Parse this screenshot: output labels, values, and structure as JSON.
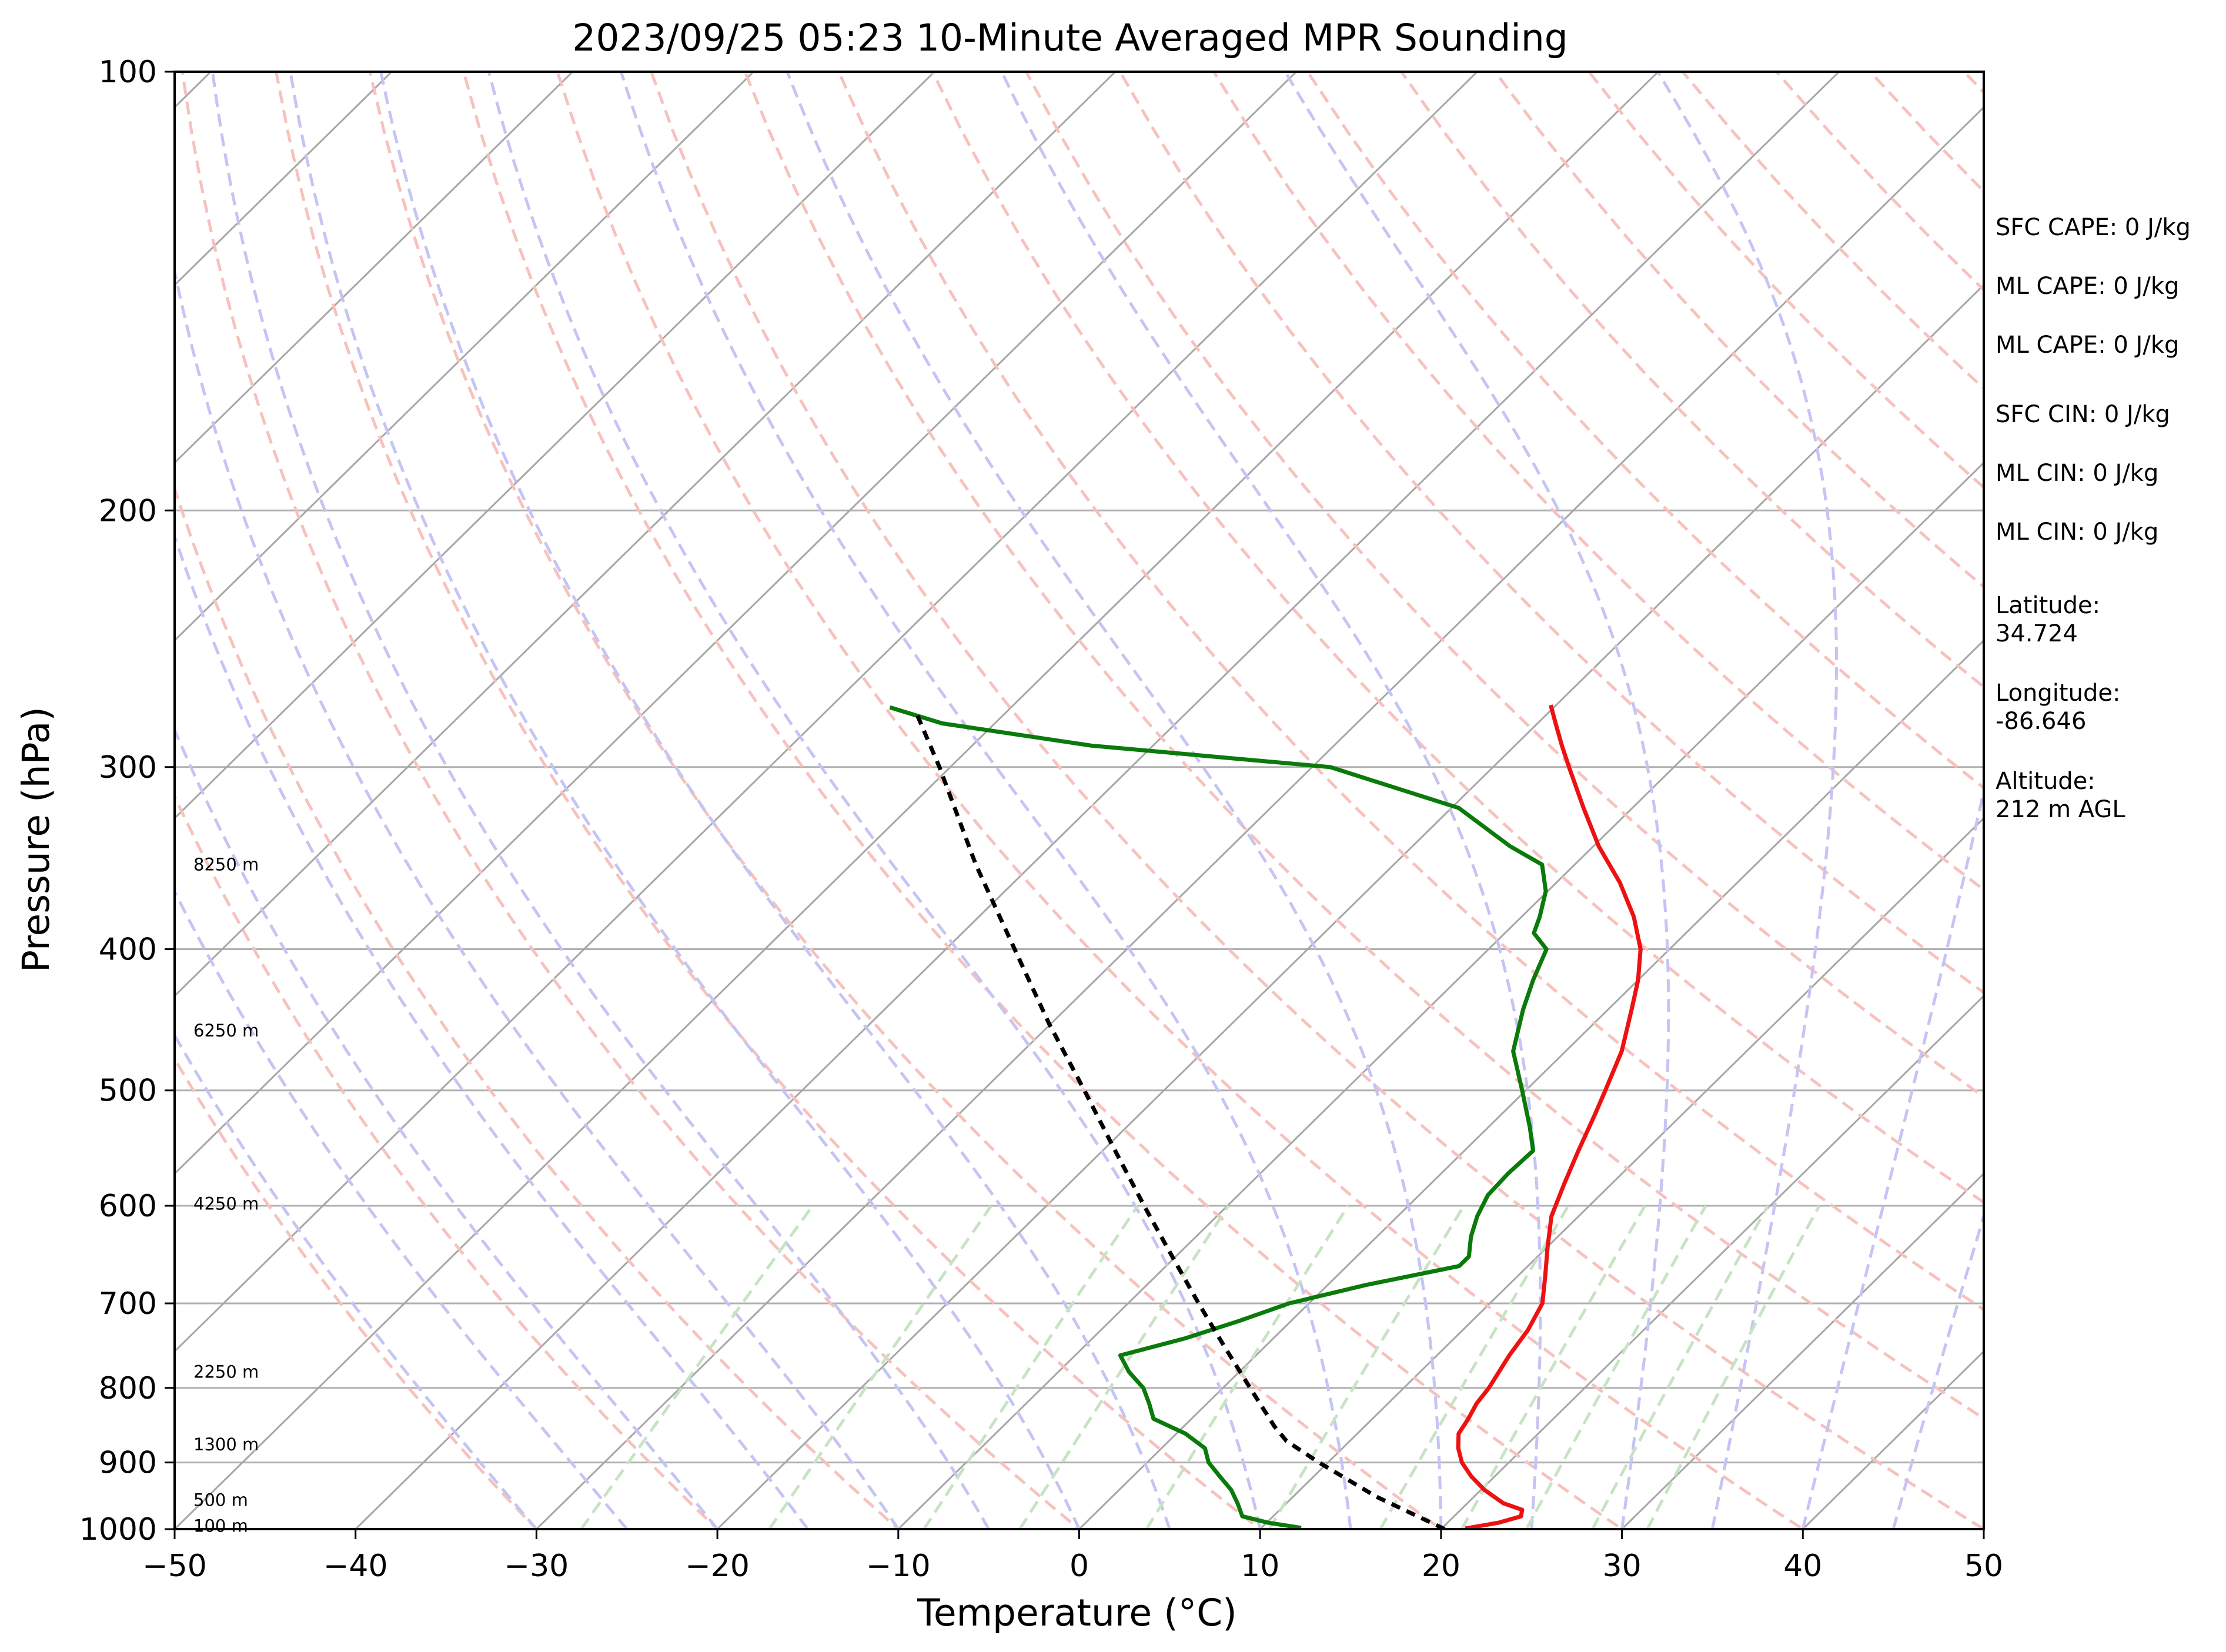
{
  "chart_data": {
    "type": "skew-t",
    "title": "2023/09/25 05:23 10-Minute Averaged MPR Sounding",
    "xlabel": "Temperature (°C)",
    "ylabel": "Pressure (hPa)",
    "xlim": [
      -50,
      50
    ],
    "ylim": [
      1000,
      100
    ],
    "y_scale": "log",
    "x_ticks": [
      -50,
      -40,
      -30,
      -20,
      -10,
      0,
      10,
      20,
      30,
      40,
      50
    ],
    "x_tick_labels": [
      "−50",
      "−40",
      "−30",
      "−20",
      "−10",
      "0",
      "10",
      "20",
      "30",
      "40",
      "50"
    ],
    "y_ticks": [
      100,
      200,
      300,
      400,
      500,
      600,
      700,
      800,
      900,
      1000
    ],
    "y_tick_labels": [
      "100",
      "200",
      "300",
      "400",
      "500",
      "600",
      "700",
      "800",
      "900",
      "1000"
    ],
    "grid": "horizontal at pressure ticks",
    "isotherm_color": "#a6a6a6",
    "dry_adiabat_color": "#f7c1bd",
    "moist_adiabat_color": "#c4c4f5",
    "mixing_ratio_color": "#c7e3c4",
    "height_labels": [
      {
        "text": "8250 m",
        "p": 350
      },
      {
        "text": "6250 m",
        "p": 455
      },
      {
        "text": "4250 m",
        "p": 598
      },
      {
        "text": "2250 m",
        "p": 780
      },
      {
        "text": "1300 m",
        "p": 875
      },
      {
        "text": "500 m",
        "p": 955
      },
      {
        "text": "100 m",
        "p": 995
      }
    ],
    "side_info": [
      "SFC CAPE: 0 J/kg",
      "ML CAPE: 0 J/kg",
      "ML CAPE: 0 J/kg",
      "SFC CIN: 0 J/kg",
      "ML CIN: 0 J/kg",
      "ML CIN: 0 J/kg",
      "Latitude:\n34.724",
      "Longitude:\n-86.646",
      "Altitude:\n212 m AGL"
    ],
    "series": [
      {
        "color": "#ee1111",
        "points": [
          [
            999,
            21.3
          ],
          [
            990,
            22.8
          ],
          [
            980,
            23.7
          ],
          [
            970,
            23.4
          ],
          [
            960,
            22.0
          ],
          [
            940,
            20.2
          ],
          [
            920,
            18.7
          ],
          [
            900,
            17.4
          ],
          [
            880,
            16.4
          ],
          [
            860,
            15.6
          ],
          [
            840,
            15.3
          ],
          [
            820,
            14.9
          ],
          [
            800,
            14.7
          ],
          [
            760,
            14.0
          ],
          [
            730,
            13.6
          ],
          [
            700,
            12.9
          ],
          [
            670,
            11.5
          ],
          [
            640,
            10.0
          ],
          [
            610,
            8.5
          ],
          [
            580,
            7.4
          ],
          [
            550,
            6.3
          ],
          [
            520,
            5.2
          ],
          [
            500,
            4.4
          ],
          [
            470,
            3.1
          ],
          [
            440,
            1.3
          ],
          [
            420,
            0.0
          ],
          [
            400,
            -1.6
          ],
          [
            380,
            -3.8
          ],
          [
            360,
            -6.5
          ],
          [
            340,
            -9.7
          ],
          [
            320,
            -12.7
          ],
          [
            300,
            -15.8
          ],
          [
            290,
            -17.4
          ],
          [
            280,
            -19.0
          ],
          [
            272,
            -20.3
          ]
        ]
      },
      {
        "color": "#0a7a0a",
        "points": [
          [
            998,
            12.2
          ],
          [
            990,
            10.1
          ],
          [
            980,
            8.3
          ],
          [
            960,
            7.3
          ],
          [
            940,
            6.2
          ],
          [
            920,
            4.8
          ],
          [
            900,
            3.4
          ],
          [
            880,
            2.4
          ],
          [
            860,
            0.5
          ],
          [
            840,
            -2.1
          ],
          [
            820,
            -3.2
          ],
          [
            800,
            -4.4
          ],
          [
            780,
            -6.1
          ],
          [
            760,
            -7.5
          ],
          [
            740,
            -4.9
          ],
          [
            720,
            -2.9
          ],
          [
            700,
            -1.1
          ],
          [
            680,
            2.1
          ],
          [
            660,
            6.2
          ],
          [
            650,
            6.2
          ],
          [
            630,
            5.2
          ],
          [
            610,
            4.4
          ],
          [
            590,
            3.8
          ],
          [
            570,
            3.7
          ],
          [
            550,
            3.8
          ],
          [
            530,
            2.3
          ],
          [
            500,
            -0.2
          ],
          [
            470,
            -2.9
          ],
          [
            440,
            -4.7
          ],
          [
            420,
            -5.8
          ],
          [
            400,
            -6.8
          ],
          [
            390,
            -8.4
          ],
          [
            380,
            -9.0
          ],
          [
            365,
            -10.1
          ],
          [
            350,
            -11.8
          ],
          [
            340,
            -14.6
          ],
          [
            320,
            -19.6
          ],
          [
            300,
            -29.0
          ],
          [
            290,
            -43.4
          ],
          [
            280,
            -52.9
          ],
          [
            273,
            -56.7
          ]
        ]
      },
      {
        "color": "#000000",
        "points": [
          [
            1000,
            20.2
          ],
          [
            950,
            14.6
          ],
          [
            900,
            9.5
          ],
          [
            870,
            6.5
          ],
          [
            850,
            5.0
          ],
          [
            800,
            1.5
          ],
          [
            750,
            -2.2
          ],
          [
            700,
            -6.1
          ],
          [
            650,
            -10.2
          ],
          [
            600,
            -14.6
          ],
          [
            550,
            -19.3
          ],
          [
            500,
            -24.4
          ],
          [
            450,
            -30.1
          ],
          [
            400,
            -36.2
          ],
          [
            350,
            -43.1
          ],
          [
            300,
            -50.6
          ],
          [
            275,
            -55.0
          ]
        ]
      }
    ]
  }
}
